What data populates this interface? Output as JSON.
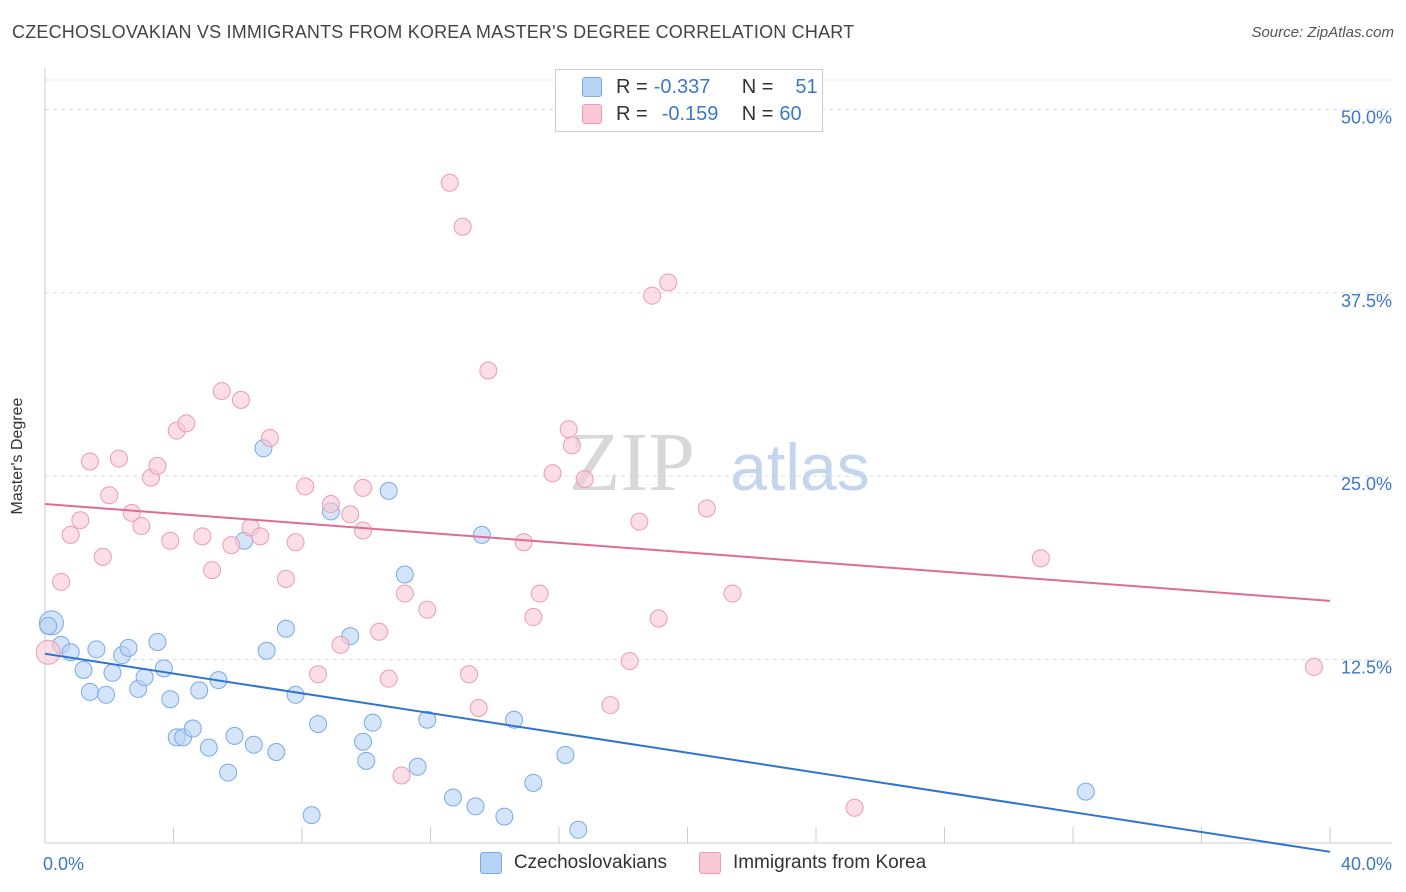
{
  "title": "CZECHOSLOVAKIAN VS IMMIGRANTS FROM KOREA MASTER'S DEGREE CORRELATION CHART",
  "source": "Source: ZipAtlas.com",
  "watermark": {
    "zip": "ZIP",
    "atlas": "atlas"
  },
  "colors": {
    "blue_fill": "#b7d3f5",
    "blue_stroke": "#7aaae6",
    "blue_line": "#2f74d0",
    "pink_fill": "#f8c8d6",
    "pink_stroke": "#ee9ab4",
    "pink_line": "#e06b93",
    "tick_text": "#3b78c9"
  },
  "legend_top": [
    {
      "r_label": "R =",
      "r_value": "-0.337",
      "n_label": "N =",
      "n_value": "51"
    },
    {
      "r_label": "R =",
      "r_value": "-0.159",
      "n_label": "N =",
      "n_value": "60"
    }
  ],
  "chart_data": {
    "type": "scatter",
    "ylabel": "Master's Degree",
    "xlim": [
      0,
      40
    ],
    "ylim": [
      0,
      52
    ],
    "x_tick_labels": [
      "0.0%",
      "40.0%"
    ],
    "y_ticks": [
      12.5,
      25.0,
      37.5,
      50.0
    ],
    "y_tick_labels": [
      "12.5%",
      "25.0%",
      "37.5%",
      "50.0%"
    ],
    "grid": true,
    "series": [
      {
        "name": "Czechoslovakians",
        "color": "blue",
        "trend": {
          "x1": 0,
          "y1": 12.9,
          "x2": 40,
          "y2": -0.6
        },
        "points": [
          [
            0.2,
            15.0
          ],
          [
            0.5,
            13.5
          ],
          [
            0.8,
            13.0
          ],
          [
            1.2,
            11.8
          ],
          [
            1.4,
            10.3
          ],
          [
            1.6,
            13.2
          ],
          [
            1.9,
            10.1
          ],
          [
            2.1,
            11.6
          ],
          [
            2.4,
            12.8
          ],
          [
            2.6,
            13.3
          ],
          [
            2.9,
            10.5
          ],
          [
            3.1,
            11.3
          ],
          [
            3.5,
            13.7
          ],
          [
            3.7,
            11.9
          ],
          [
            3.9,
            9.8
          ],
          [
            4.1,
            7.2
          ],
          [
            4.3,
            7.2
          ],
          [
            4.6,
            7.8
          ],
          [
            4.8,
            10.4
          ],
          [
            5.1,
            6.5
          ],
          [
            5.4,
            11.1
          ],
          [
            5.7,
            4.8
          ],
          [
            5.9,
            7.3
          ],
          [
            6.2,
            20.6
          ],
          [
            6.5,
            6.7
          ],
          [
            6.8,
            26.9
          ],
          [
            6.9,
            13.1
          ],
          [
            7.2,
            6.2
          ],
          [
            7.5,
            14.6
          ],
          [
            7.8,
            10.1
          ],
          [
            8.3,
            1.9
          ],
          [
            8.5,
            8.1
          ],
          [
            8.9,
            22.6
          ],
          [
            9.5,
            14.1
          ],
          [
            9.9,
            6.9
          ],
          [
            10.0,
            5.6
          ],
          [
            10.2,
            8.2
          ],
          [
            10.7,
            24.0
          ],
          [
            11.2,
            18.3
          ],
          [
            11.6,
            5.2
          ],
          [
            11.9,
            8.4
          ],
          [
            12.7,
            3.1
          ],
          [
            13.4,
            2.5
          ],
          [
            13.6,
            21.0
          ],
          [
            14.3,
            1.8
          ],
          [
            14.6,
            8.4
          ],
          [
            15.2,
            4.1
          ],
          [
            16.2,
            6.0
          ],
          [
            16.6,
            0.9
          ],
          [
            32.4,
            3.5
          ],
          [
            0.1,
            14.8
          ]
        ]
      },
      {
        "name": "Immigrants from Korea",
        "color": "pink",
        "trend": {
          "x1": 0,
          "y1": 23.1,
          "x2": 40,
          "y2": 16.5
        },
        "points": [
          [
            0.1,
            13.0
          ],
          [
            0.5,
            17.8
          ],
          [
            0.8,
            21.0
          ],
          [
            1.1,
            22.0
          ],
          [
            1.4,
            26.0
          ],
          [
            1.8,
            19.5
          ],
          [
            2.0,
            23.7
          ],
          [
            2.3,
            26.2
          ],
          [
            2.7,
            22.5
          ],
          [
            3.0,
            21.6
          ],
          [
            3.3,
            24.9
          ],
          [
            3.5,
            25.7
          ],
          [
            3.9,
            20.6
          ],
          [
            4.1,
            28.1
          ],
          [
            4.4,
            28.6
          ],
          [
            4.9,
            20.9
          ],
          [
            5.2,
            18.6
          ],
          [
            5.5,
            30.8
          ],
          [
            5.8,
            20.3
          ],
          [
            6.1,
            30.2
          ],
          [
            6.4,
            21.5
          ],
          [
            6.7,
            20.9
          ],
          [
            7.0,
            27.6
          ],
          [
            7.5,
            18.0
          ],
          [
            7.8,
            20.5
          ],
          [
            8.1,
            24.3
          ],
          [
            8.5,
            11.5
          ],
          [
            8.9,
            23.1
          ],
          [
            9.2,
            13.5
          ],
          [
            9.5,
            22.4
          ],
          [
            9.9,
            21.3
          ],
          [
            9.9,
            24.2
          ],
          [
            10.4,
            14.4
          ],
          [
            10.7,
            11.2
          ],
          [
            11.1,
            4.6
          ],
          [
            11.2,
            17.0
          ],
          [
            11.9,
            15.9
          ],
          [
            12.6,
            45.0
          ],
          [
            13.0,
            42.0
          ],
          [
            13.2,
            11.5
          ],
          [
            13.5,
            9.2
          ],
          [
            13.8,
            32.2
          ],
          [
            14.9,
            20.5
          ],
          [
            15.2,
            15.4
          ],
          [
            15.4,
            17.0
          ],
          [
            15.8,
            25.2
          ],
          [
            16.3,
            28.2
          ],
          [
            16.4,
            27.1
          ],
          [
            16.8,
            24.8
          ],
          [
            17.6,
            9.4
          ],
          [
            18.2,
            12.4
          ],
          [
            18.5,
            21.9
          ],
          [
            18.9,
            37.3
          ],
          [
            19.1,
            15.3
          ],
          [
            19.4,
            38.2
          ],
          [
            20.6,
            22.8
          ],
          [
            21.4,
            17.0
          ],
          [
            25.2,
            2.4
          ],
          [
            31.0,
            19.4
          ],
          [
            39.5,
            12.0
          ]
        ]
      }
    ]
  }
}
